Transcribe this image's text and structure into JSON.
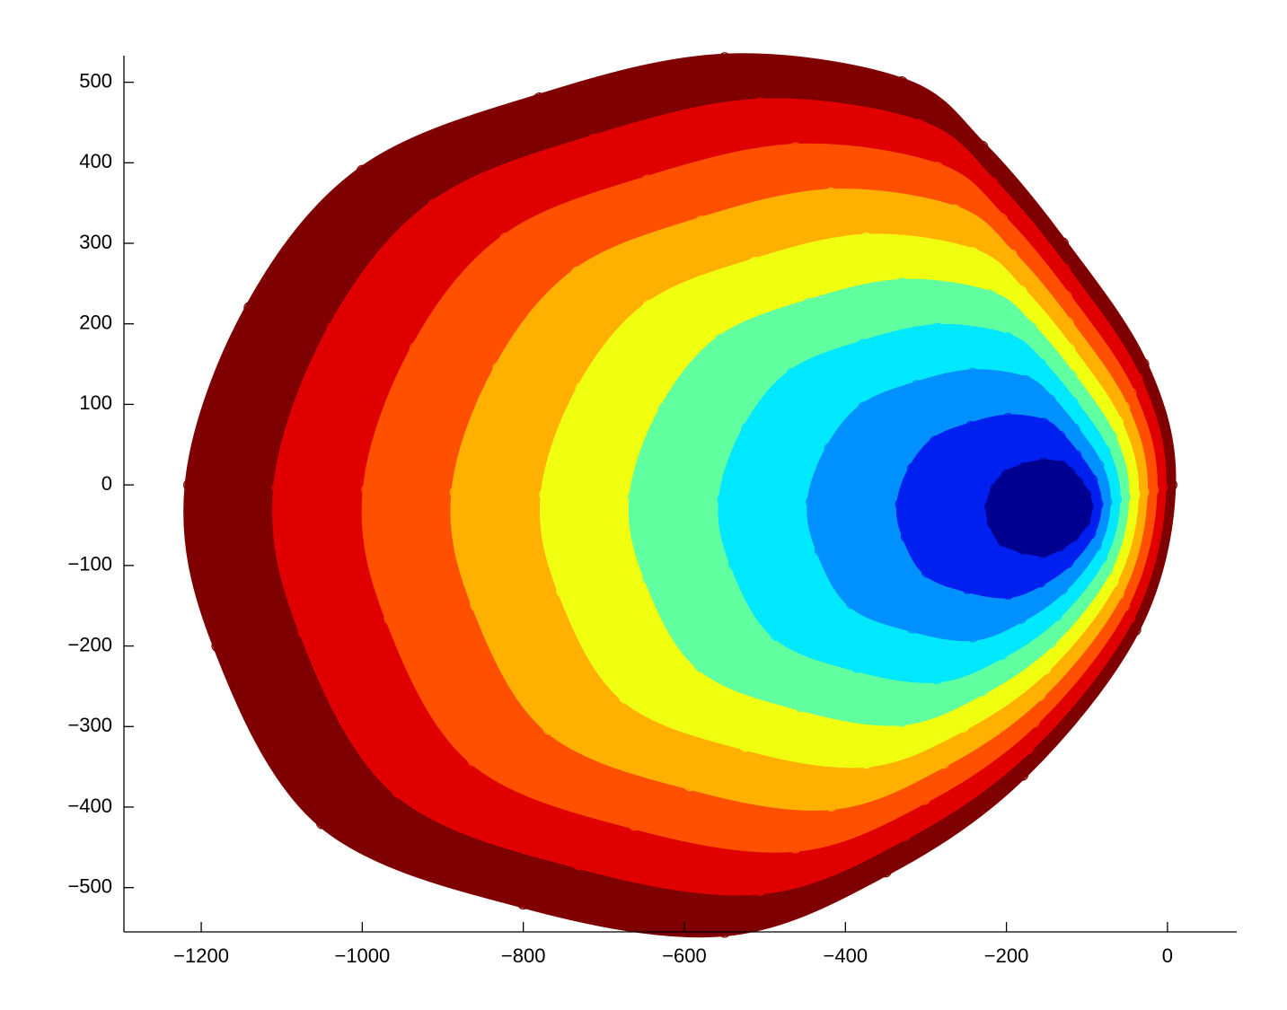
{
  "chart_data": {
    "type": "scatter",
    "xlim": [
      -1296,
      86
    ],
    "ylim": [
      -555,
      533
    ],
    "xticks": [
      {
        "value": -1200,
        "label": "−1200"
      },
      {
        "value": -1000,
        "label": "−1000"
      },
      {
        "value": -800,
        "label": "−800"
      },
      {
        "value": -600,
        "label": "−600"
      },
      {
        "value": -400,
        "label": "−400"
      },
      {
        "value": -200,
        "label": "−200"
      },
      0
    ],
    "yticks": [
      {
        "value": -500,
        "label": "−500"
      },
      {
        "value": -400,
        "label": "−400"
      },
      {
        "value": -300,
        "label": "−300"
      },
      {
        "value": -200,
        "label": "−200"
      },
      {
        "value": -100,
        "label": "−100"
      },
      0,
      100,
      200,
      300,
      400,
      500
    ],
    "series": [
      {
        "color": "#7f0000",
        "x": [
          5,
          -30,
          -130,
          -230,
          -330,
          -550,
          -780,
          -1000,
          -1140,
          -1215,
          -1180,
          -1050,
          -800,
          -550,
          -350,
          -180,
          -40
        ],
        "y": [
          0,
          150,
          300,
          420,
          500,
          530,
          480,
          390,
          220,
          0,
          -200,
          -420,
          -520,
          -555,
          -480,
          -360,
          -180
        ]
      },
      {
        "color": "#e00000",
        "x": [
          -7,
          -38,
          -128,
          -218,
          -308,
          -506,
          -713,
          -911,
          -1037,
          -1105,
          -1073,
          -956,
          -731,
          -506,
          -326,
          -173,
          -47
        ],
        "y": [
          -3,
          132,
          267,
          375,
          447,
          474,
          429,
          348,
          195,
          -3,
          -183,
          -381,
          -471,
          -503,
          -435,
          -327,
          -165
        ]
      },
      {
        "color": "#ff5000",
        "x": [
          -18,
          -46,
          -126,
          -206,
          -286,
          -462,
          -646,
          -822,
          -934,
          -994,
          -966,
          -862,
          -662,
          -462,
          -302,
          -166,
          -54
        ],
        "y": [
          -6,
          114,
          234,
          330,
          394,
          418,
          378,
          306,
          170,
          -6,
          -166,
          -342,
          -422,
          -450,
          -390,
          -294,
          -150
        ]
      },
      {
        "color": "#ffb000",
        "x": [
          -30,
          -54,
          -124,
          -194,
          -264,
          -418,
          -579,
          -733,
          -831,
          -884,
          -859,
          -768,
          -593,
          -418,
          -278,
          -159,
          -61
        ],
        "y": [
          -9,
          96,
          201,
          285,
          341,
          362,
          327,
          264,
          145,
          -9,
          -149,
          -303,
          -373,
          -398,
          -345,
          -261,
          -135
        ]
      },
      {
        "color": "#f0ff10",
        "x": [
          -41,
          -62,
          -122,
          -182,
          -242,
          -374,
          -512,
          -644,
          -728,
          -773,
          -752,
          -674,
          -524,
          -374,
          -254,
          -152,
          -68
        ],
        "y": [
          -12,
          78,
          168,
          240,
          288,
          306,
          276,
          222,
          120,
          -12,
          -132,
          -264,
          -324,
          -345,
          -300,
          -228,
          -120
        ]
      },
      {
        "color": "#60ffa0",
        "x": [
          -53,
          -70,
          -120,
          -170,
          -220,
          -330,
          -445,
          -555,
          -625,
          -663,
          -645,
          -580,
          -455,
          -330,
          -230,
          -145,
          -75
        ],
        "y": [
          -15,
          60,
          135,
          195,
          235,
          250,
          225,
          180,
          95,
          -15,
          -115,
          -225,
          -275,
          -293,
          -255,
          -195,
          -105
        ]
      },
      {
        "color": "#00e8ff",
        "x": [
          -64,
          -78,
          -118,
          -158,
          -198,
          -286,
          -378,
          -466,
          -522,
          -552,
          -538,
          -486,
          -386,
          -286,
          -206,
          -138,
          -82
        ],
        "y": [
          -18,
          42,
          102,
          150,
          182,
          194,
          174,
          138,
          70,
          -18,
          -98,
          -186,
          -226,
          -240,
          -210,
          -162,
          -90
        ]
      },
      {
        "color": "#0090ff",
        "x": [
          -76,
          -86,
          -116,
          -146,
          -176,
          -242,
          -311,
          -377,
          -419,
          -442,
          -431,
          -392,
          -317,
          -242,
          -182,
          -131,
          -89
        ],
        "y": [
          -21,
          24,
          69,
          105,
          129,
          138,
          123,
          96,
          45,
          -21,
          -81,
          -147,
          -177,
          -188,
          -165,
          -129,
          -75
        ]
      },
      {
        "color": "#0020f0",
        "x": [
          -87,
          -94,
          -114,
          -134,
          -154,
          -198,
          -244,
          -288,
          -316,
          -331,
          -324,
          -298,
          -248,
          -198,
          -158,
          -124,
          -96
        ],
        "y": [
          -24,
          6,
          36,
          60,
          76,
          82,
          72,
          54,
          20,
          -24,
          -64,
          -108,
          -128,
          -135,
          -120,
          -96,
          -60
        ]
      },
      {
        "color": "#000090",
        "x": [
          -99,
          -102,
          -112,
          -122,
          -132,
          -154,
          -177,
          -199,
          -213,
          -220,
          -217,
          -204,
          -179,
          -154,
          -134,
          -117,
          -103
        ],
        "y": [
          -27,
          -12,
          3,
          15,
          23,
          26,
          21,
          12,
          -5,
          -27,
          -47,
          -69,
          -79,
          -83,
          -75,
          -63,
          -45
        ]
      }
    ]
  }
}
